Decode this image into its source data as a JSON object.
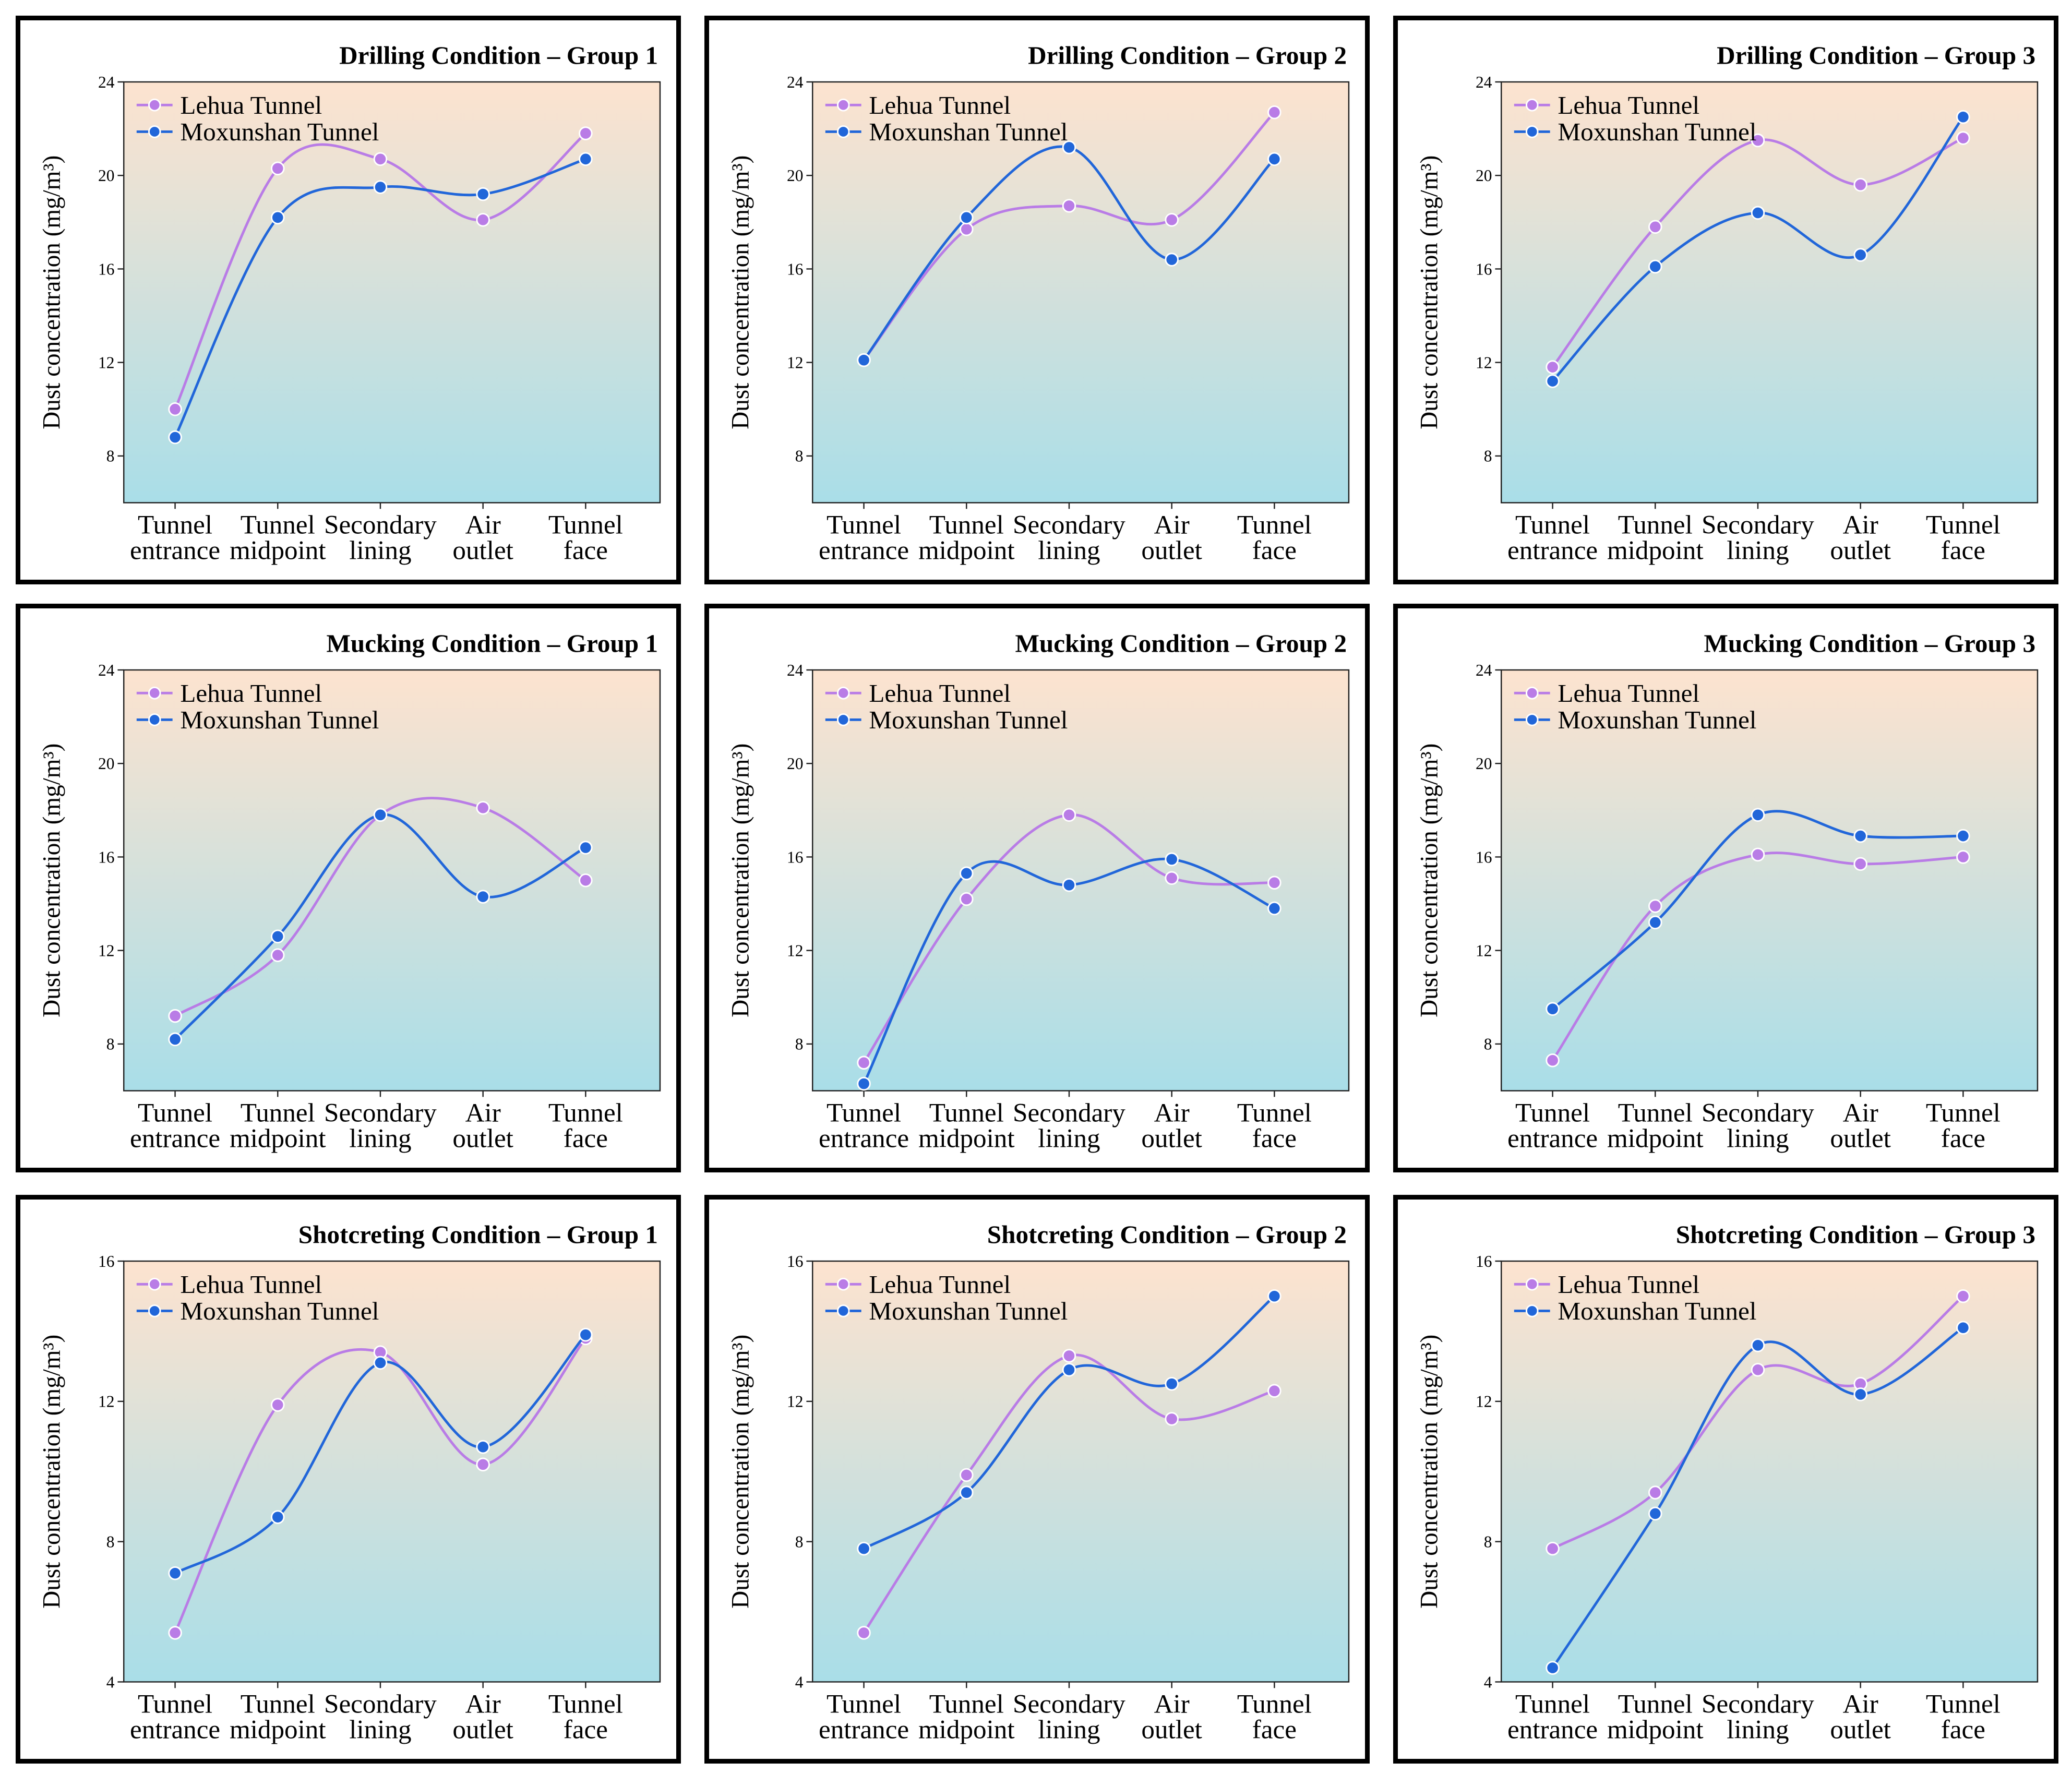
{
  "colors": {
    "lehua": "#b97ce6",
    "moxunshan": "#2166d9",
    "bg_top": "#fde3cf",
    "bg_bottom": "#a9dee8"
  },
  "legend": {
    "lehua": "Lehua Tunnel",
    "moxunshan": "Moxunshan Tunnel"
  },
  "chart_data": [
    {
      "type": "line",
      "title": "Drilling Condition – Group 1",
      "ylabel": "Dust concentration (mg/m³)",
      "categories": [
        [
          "Tunnel",
          "entrance"
        ],
        [
          "Tunnel",
          "midpoint"
        ],
        [
          "Secondary",
          "lining"
        ],
        [
          "Air",
          "outlet"
        ],
        [
          "Tunnel",
          "face"
        ]
      ],
      "ylim": [
        6,
        24
      ],
      "yticks": [
        8,
        12,
        16,
        20,
        24
      ],
      "series": [
        {
          "name": "Lehua Tunnel",
          "values": [
            10.0,
            20.3,
            20.7,
            18.1,
            21.8
          ]
        },
        {
          "name": "Moxunshan Tunnel",
          "values": [
            8.8,
            18.2,
            19.5,
            19.2,
            20.7
          ]
        }
      ]
    },
    {
      "type": "line",
      "title": "Drilling Condition – Group 2",
      "ylabel": "Dust concentration (mg/m³)",
      "categories": [
        [
          "Tunnel",
          "entrance"
        ],
        [
          "Tunnel",
          "midpoint"
        ],
        [
          "Secondary",
          "lining"
        ],
        [
          "Air",
          "outlet"
        ],
        [
          "Tunnel",
          "face"
        ]
      ],
      "ylim": [
        6,
        24
      ],
      "yticks": [
        8,
        12,
        16,
        20,
        24
      ],
      "series": [
        {
          "name": "Lehua Tunnel",
          "values": [
            12.1,
            17.7,
            18.7,
            18.1,
            22.7
          ]
        },
        {
          "name": "Moxunshan Tunnel",
          "values": [
            12.1,
            18.2,
            21.2,
            16.4,
            20.7
          ]
        }
      ]
    },
    {
      "type": "line",
      "title": "Drilling Condition – Group 3",
      "ylabel": "Dust concentration (mg/m³)",
      "categories": [
        [
          "Tunnel",
          "entrance"
        ],
        [
          "Tunnel",
          "midpoint"
        ],
        [
          "Secondary",
          "lining"
        ],
        [
          "Air",
          "outlet"
        ],
        [
          "Tunnel",
          "face"
        ]
      ],
      "ylim": [
        6,
        24
      ],
      "yticks": [
        8,
        12,
        16,
        20,
        24
      ],
      "series": [
        {
          "name": "Lehua Tunnel",
          "values": [
            11.8,
            17.8,
            21.5,
            19.6,
            21.6
          ]
        },
        {
          "name": "Moxunshan Tunnel",
          "values": [
            11.2,
            16.1,
            18.4,
            16.6,
            22.5
          ]
        }
      ]
    },
    {
      "type": "line",
      "title": "Mucking Condition – Group 1",
      "ylabel": "Dust concentration (mg/m³)",
      "categories": [
        [
          "Tunnel",
          "entrance"
        ],
        [
          "Tunnel",
          "midpoint"
        ],
        [
          "Secondary",
          "lining"
        ],
        [
          "Air",
          "outlet"
        ],
        [
          "Tunnel",
          "face"
        ]
      ],
      "ylim": [
        6,
        24
      ],
      "yticks": [
        8,
        12,
        16,
        20,
        24
      ],
      "series": [
        {
          "name": "Lehua Tunnel",
          "values": [
            9.2,
            11.8,
            17.8,
            18.1,
            15.0
          ]
        },
        {
          "name": "Moxunshan Tunnel",
          "values": [
            8.2,
            12.6,
            17.8,
            14.3,
            16.4
          ]
        }
      ]
    },
    {
      "type": "line",
      "title": "Mucking Condition – Group 2",
      "ylabel": "Dust concentration (mg/m³)",
      "categories": [
        [
          "Tunnel",
          "entrance"
        ],
        [
          "Tunnel",
          "midpoint"
        ],
        [
          "Secondary",
          "lining"
        ],
        [
          "Air",
          "outlet"
        ],
        [
          "Tunnel",
          "face"
        ]
      ],
      "ylim": [
        6,
        24
      ],
      "yticks": [
        8,
        12,
        16,
        20,
        24
      ],
      "series": [
        {
          "name": "Lehua Tunnel",
          "values": [
            7.2,
            14.2,
            17.8,
            15.1,
            14.9
          ]
        },
        {
          "name": "Moxunshan Tunnel",
          "values": [
            6.3,
            15.3,
            14.8,
            15.9,
            13.8
          ]
        }
      ]
    },
    {
      "type": "line",
      "title": "Mucking Condition – Group 3",
      "ylabel": "Dust concentration (mg/m³)",
      "categories": [
        [
          "Tunnel",
          "entrance"
        ],
        [
          "Tunnel",
          "midpoint"
        ],
        [
          "Secondary",
          "lining"
        ],
        [
          "Air",
          "outlet"
        ],
        [
          "Tunnel",
          "face"
        ]
      ],
      "ylim": [
        6,
        24
      ],
      "yticks": [
        8,
        12,
        16,
        20,
        24
      ],
      "series": [
        {
          "name": "Lehua Tunnel",
          "values": [
            7.3,
            13.9,
            16.1,
            15.7,
            16.0
          ]
        },
        {
          "name": "Moxunshan Tunnel",
          "values": [
            9.5,
            13.2,
            17.8,
            16.9,
            16.9
          ]
        }
      ]
    },
    {
      "type": "line",
      "title": "Shotcreting Condition – Group 1",
      "ylabel": "Dust concentration (mg/m³)",
      "categories": [
        [
          "Tunnel",
          "entrance"
        ],
        [
          "Tunnel",
          "midpoint"
        ],
        [
          "Secondary",
          "lining"
        ],
        [
          "Air",
          "outlet"
        ],
        [
          "Tunnel",
          "face"
        ]
      ],
      "ylim": [
        4,
        16
      ],
      "yticks": [
        4,
        8,
        12,
        16
      ],
      "series": [
        {
          "name": "Lehua Tunnel",
          "values": [
            5.4,
            11.9,
            13.4,
            10.2,
            13.8
          ]
        },
        {
          "name": "Moxunshan Tunnel",
          "values": [
            7.1,
            8.7,
            13.1,
            10.7,
            13.9
          ]
        }
      ]
    },
    {
      "type": "line",
      "title": "Shotcreting Condition – Group 2",
      "ylabel": "Dust concentration (mg/m³)",
      "categories": [
        [
          "Tunnel",
          "entrance"
        ],
        [
          "Tunnel",
          "midpoint"
        ],
        [
          "Secondary",
          "lining"
        ],
        [
          "Air",
          "outlet"
        ],
        [
          "Tunnel",
          "face"
        ]
      ],
      "ylim": [
        4,
        16
      ],
      "yticks": [
        4,
        8,
        12,
        16
      ],
      "series": [
        {
          "name": "Lehua Tunnel",
          "values": [
            5.4,
            9.9,
            13.3,
            11.5,
            12.3
          ]
        },
        {
          "name": "Moxunshan Tunnel",
          "values": [
            7.8,
            9.4,
            12.9,
            12.5,
            15.0
          ]
        }
      ]
    },
    {
      "type": "line",
      "title": "Shotcreting Condition – Group 3",
      "ylabel": "Dust concentration (mg/m³)",
      "categories": [
        [
          "Tunnel",
          "entrance"
        ],
        [
          "Tunnel",
          "midpoint"
        ],
        [
          "Secondary",
          "lining"
        ],
        [
          "Air",
          "outlet"
        ],
        [
          "Tunnel",
          "face"
        ]
      ],
      "ylim": [
        4,
        16
      ],
      "yticks": [
        4,
        8,
        12,
        16
      ],
      "series": [
        {
          "name": "Lehua Tunnel",
          "values": [
            7.8,
            9.4,
            12.9,
            12.5,
            15.0
          ]
        },
        {
          "name": "Moxunshan Tunnel",
          "values": [
            4.4,
            8.8,
            13.6,
            12.2,
            14.1
          ]
        }
      ]
    }
  ]
}
